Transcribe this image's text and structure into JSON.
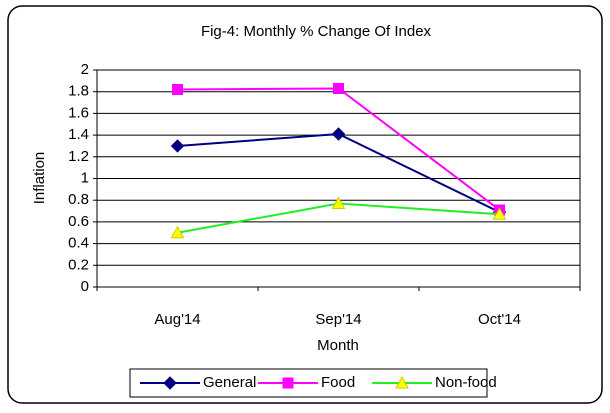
{
  "chart_data": {
    "type": "line",
    "title": "Fig-4: Monthly % Change Of Index",
    "x_label": "Month",
    "y_label": "Inflation",
    "categories": [
      "Aug'14",
      "Sep'14",
      "Oct'14"
    ],
    "series": [
      {
        "name": "General",
        "color": "#000080",
        "marker": "diamond",
        "marker_color": "#000080",
        "values": [
          1.3,
          1.41,
          0.69
        ]
      },
      {
        "name": "Food",
        "color": "#ff00ff",
        "marker": "square",
        "marker_color": "#ff00ff",
        "values": [
          1.82,
          1.83,
          0.71
        ]
      },
      {
        "name": "Non-food",
        "color": "#22ee22",
        "marker": "triangle",
        "marker_color": "#ffff00",
        "values": [
          0.5,
          0.77,
          0.67
        ]
      }
    ],
    "ylim": [
      0,
      2
    ],
    "yticks": [
      0,
      0.2,
      0.4,
      0.6,
      0.8,
      1,
      1.2,
      1.4,
      1.6,
      1.8,
      2
    ],
    "grid": true,
    "legend": "bottom"
  }
}
